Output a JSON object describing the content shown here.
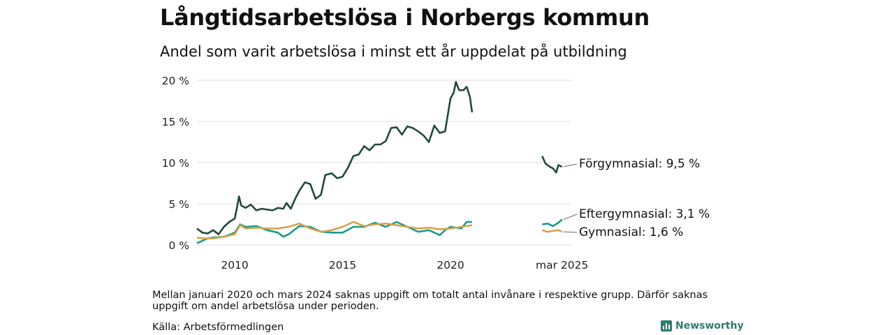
{
  "title": "Långtidsarbetslösa i Norbergs kommun",
  "subtitle": "Andel som varit arbetslösa i minst ett år uppdelat på utbildning",
  "note": "Mellan januari 2020 och mars 2024 saknas uppgift om totalt antal invånare i respektive grupp. Därför saknas uppgift om andel arbetslösa under perioden.",
  "source": "Källa: Arbetsförmedlingen",
  "brand": "Newsworthy",
  "colors": {
    "forgymnasial": "#1f4a3d",
    "eftergymnasial": "#1a9a8a",
    "gymnasial": "#d4a24c",
    "grid": "#dddddd",
    "brand": "#2b7d6e"
  },
  "chart_data": {
    "type": "line",
    "title": "Långtidsarbetslösa i Norbergs kommun",
    "subtitle": "Andel som varit arbetslösa i minst ett år uppdelat på utbildning",
    "y_unit": "%",
    "ylim": [
      0,
      20
    ],
    "y_ticks": [
      0,
      5,
      10,
      15,
      20
    ],
    "y_tick_labels": [
      "0 %",
      "5 %",
      "10 %",
      "15 %",
      "20 %"
    ],
    "x_tick_labels": [
      "2010",
      "2015",
      "2020",
      "mar 2025"
    ],
    "x_tick_dates": [
      2010.0,
      2015.0,
      2020.0,
      2025.17
    ],
    "grid": true,
    "legend": "end-of-line labels (right)",
    "series": [
      {
        "name": "Förgymnasial",
        "end_label": "Förgymnasial: 9,5 %",
        "color_key": "forgymnasial",
        "segments": [
          [
            [
              2008.25,
              2.0
            ],
            [
              2008.5,
              1.5
            ],
            [
              2008.75,
              1.4
            ],
            [
              2009.0,
              1.8
            ],
            [
              2009.25,
              1.3
            ],
            [
              2009.5,
              2.2
            ],
            [
              2009.75,
              2.8
            ],
            [
              2010.0,
              3.2
            ],
            [
              2010.1,
              4.5
            ],
            [
              2010.2,
              5.9
            ],
            [
              2010.3,
              4.8
            ],
            [
              2010.5,
              4.5
            ],
            [
              2010.75,
              4.9
            ],
            [
              2011.0,
              4.2
            ],
            [
              2011.25,
              4.4
            ],
            [
              2011.5,
              4.3
            ],
            [
              2011.75,
              4.2
            ],
            [
              2012.0,
              4.5
            ],
            [
              2012.25,
              4.4
            ],
            [
              2012.4,
              5.1
            ],
            [
              2012.6,
              4.4
            ],
            [
              2012.8,
              5.6
            ],
            [
              2013.0,
              6.6
            ],
            [
              2013.25,
              7.6
            ],
            [
              2013.5,
              7.4
            ],
            [
              2013.75,
              5.6
            ],
            [
              2014.0,
              6.1
            ],
            [
              2014.2,
              8.5
            ],
            [
              2014.5,
              8.7
            ],
            [
              2014.75,
              8.1
            ],
            [
              2015.0,
              8.3
            ],
            [
              2015.25,
              9.4
            ],
            [
              2015.5,
              10.8
            ],
            [
              2015.75,
              11.0
            ],
            [
              2016.0,
              12.0
            ],
            [
              2016.25,
              11.5
            ],
            [
              2016.5,
              12.2
            ],
            [
              2016.75,
              12.2
            ],
            [
              2017.0,
              12.6
            ],
            [
              2017.25,
              14.2
            ],
            [
              2017.5,
              14.3
            ],
            [
              2017.75,
              13.4
            ],
            [
              2018.0,
              14.4
            ],
            [
              2018.25,
              14.2
            ],
            [
              2018.5,
              13.8
            ],
            [
              2018.75,
              13.3
            ],
            [
              2019.0,
              12.5
            ],
            [
              2019.25,
              14.5
            ],
            [
              2019.5,
              13.6
            ],
            [
              2019.75,
              13.8
            ],
            [
              2020.0,
              17.8
            ],
            [
              2020.15,
              18.5
            ],
            [
              2020.25,
              19.8
            ],
            [
              2020.4,
              18.8
            ],
            [
              2020.6,
              18.8
            ],
            [
              2020.75,
              19.2
            ],
            [
              2020.9,
              18.0
            ],
            [
              2021.0,
              16.1
            ]
          ],
          [
            [
              2024.25,
              10.8
            ],
            [
              2024.4,
              9.9
            ],
            [
              2024.6,
              9.5
            ],
            [
              2024.75,
              9.3
            ],
            [
              2024.9,
              8.8
            ],
            [
              2025.0,
              9.7
            ],
            [
              2025.17,
              9.5
            ]
          ]
        ]
      },
      {
        "name": "Eftergymnasial",
        "end_label": "Eftergymnasial: 3,1 %",
        "color_key": "eftergymnasial",
        "segments": [
          [
            [
              2008.25,
              0.2
            ],
            [
              2008.5,
              0.5
            ],
            [
              2008.75,
              0.8
            ],
            [
              2009.0,
              0.9
            ],
            [
              2009.5,
              1.0
            ],
            [
              2010.0,
              1.5
            ],
            [
              2010.25,
              2.5
            ],
            [
              2010.5,
              2.2
            ],
            [
              2011.0,
              2.3
            ],
            [
              2011.5,
              1.8
            ],
            [
              2012.0,
              1.5
            ],
            [
              2012.25,
              1.0
            ],
            [
              2012.5,
              1.3
            ],
            [
              2013.0,
              2.3
            ],
            [
              2013.5,
              2.2
            ],
            [
              2014.0,
              1.6
            ],
            [
              2014.5,
              1.5
            ],
            [
              2015.0,
              1.5
            ],
            [
              2015.5,
              2.2
            ],
            [
              2016.0,
              2.2
            ],
            [
              2016.5,
              2.7
            ],
            [
              2017.0,
              2.2
            ],
            [
              2017.5,
              2.8
            ],
            [
              2018.0,
              2.2
            ],
            [
              2018.5,
              1.6
            ],
            [
              2019.0,
              1.8
            ],
            [
              2019.5,
              1.2
            ],
            [
              2019.75,
              1.8
            ],
            [
              2020.0,
              2.2
            ],
            [
              2020.5,
              2.0
            ],
            [
              2020.75,
              2.8
            ],
            [
              2021.0,
              2.8
            ]
          ],
          [
            [
              2024.25,
              2.5
            ],
            [
              2024.5,
              2.6
            ],
            [
              2024.75,
              2.3
            ],
            [
              2025.0,
              2.7
            ],
            [
              2025.17,
              3.1
            ]
          ]
        ]
      },
      {
        "name": "Gymnasial",
        "end_label": "Gymnasial: 1,6 %",
        "color_key": "gymnasial",
        "segments": [
          [
            [
              2008.25,
              0.9
            ],
            [
              2008.5,
              0.8
            ],
            [
              2009.0,
              0.8
            ],
            [
              2009.5,
              1.0
            ],
            [
              2010.0,
              1.3
            ],
            [
              2010.25,
              2.4
            ],
            [
              2010.5,
              2.0
            ],
            [
              2011.0,
              2.1
            ],
            [
              2011.5,
              2.0
            ],
            [
              2012.0,
              2.0
            ],
            [
              2012.5,
              2.2
            ],
            [
              2013.0,
              2.6
            ],
            [
              2013.5,
              2.0
            ],
            [
              2014.0,
              1.6
            ],
            [
              2014.5,
              1.8
            ],
            [
              2015.0,
              2.2
            ],
            [
              2015.5,
              2.8
            ],
            [
              2016.0,
              2.3
            ],
            [
              2016.5,
              2.5
            ],
            [
              2017.0,
              2.6
            ],
            [
              2017.5,
              2.4
            ],
            [
              2018.0,
              2.2
            ],
            [
              2018.5,
              2.0
            ],
            [
              2019.0,
              2.1
            ],
            [
              2019.5,
              1.9
            ],
            [
              2020.0,
              2.0
            ],
            [
              2020.5,
              2.2
            ],
            [
              2021.0,
              2.4
            ]
          ],
          [
            [
              2024.25,
              1.8
            ],
            [
              2024.5,
              1.6
            ],
            [
              2024.75,
              1.7
            ],
            [
              2025.0,
              1.8
            ],
            [
              2025.17,
              1.6
            ]
          ]
        ]
      }
    ]
  }
}
